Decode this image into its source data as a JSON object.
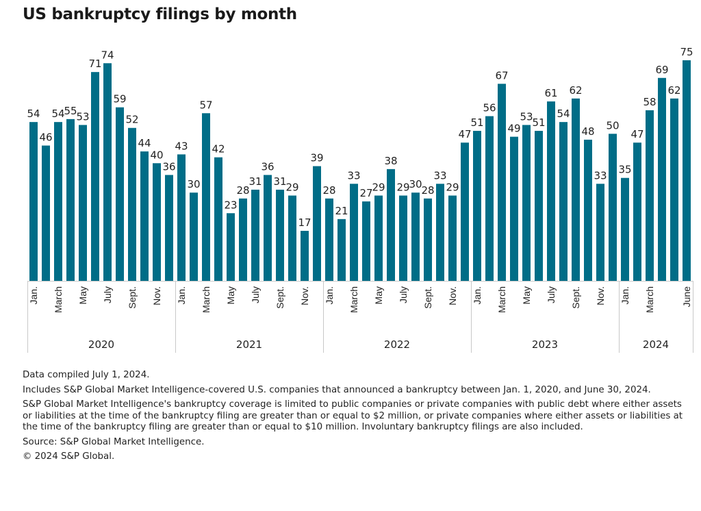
{
  "chart_data": {
    "type": "bar",
    "title": "US bankruptcy filings by month",
    "xlabel": "",
    "ylabel": "",
    "ylim": [
      0,
      75
    ],
    "grid": false,
    "bar_color": "#006d87",
    "years": [
      {
        "year": "2020",
        "values": [
          54,
          46,
          54,
          55,
          53,
          71,
          74,
          59,
          52,
          44,
          40,
          36
        ]
      },
      {
        "year": "2021",
        "values": [
          43,
          30,
          57,
          42,
          23,
          28,
          31,
          36,
          31,
          29,
          17,
          39
        ]
      },
      {
        "year": "2022",
        "values": [
          28,
          21,
          33,
          27,
          29,
          38,
          29,
          30,
          28,
          33,
          29,
          47
        ]
      },
      {
        "year": "2023",
        "values": [
          51,
          56,
          67,
          49,
          53,
          51,
          61,
          54,
          62,
          48,
          33,
          50
        ]
      },
      {
        "year": "2024",
        "values": [
          35,
          47,
          58,
          69,
          62,
          75
        ]
      }
    ],
    "month_tick_labels": {
      "0": "Jan.",
      "2": "March",
      "4": "May",
      "6": "July",
      "8": "Sept.",
      "10": "Nov."
    },
    "last_year_tick_labels": {
      "0": "Jan.",
      "2": "March",
      "5": "June"
    }
  },
  "title": "US bankruptcy filings by month",
  "footer": {
    "compiled": "Data compiled July 1, 2024.",
    "includes": "Includes S&P Global Market Intelligence-covered U.S. companies that announced a bankruptcy between Jan. 1, 2020, and June 30, 2024.",
    "coverage": "S&P Global Market Intelligence's bankruptcy coverage is limited to public companies or private companies with public debt where either assets or liabilities at the time of the bankruptcy filing are greater than or equal to $2 million, or private companies where either assets or liabilities at the time of the bankruptcy filing are greater than or equal to $10 million. Involuntary bankruptcy filings are also included.",
    "source": "Source: S&P Global Market Intelligence.",
    "copyright": "© 2024 S&P Global."
  }
}
